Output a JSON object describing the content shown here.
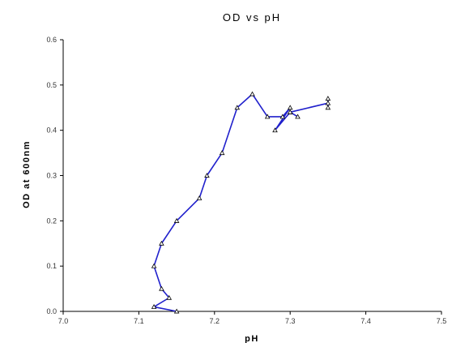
{
  "chart_data": {
    "type": "line",
    "title": "OD vs pH",
    "xlabel": "pH",
    "ylabel": "OD at 600nm",
    "xlim": [
      7.0,
      7.5
    ],
    "ylim": [
      0.0,
      0.6
    ],
    "x_ticks": [
      "7.0",
      "7.1",
      "7.2",
      "7.3",
      "7.4",
      "7.5"
    ],
    "y_ticks": [
      "0.0",
      "0.1",
      "0.2",
      "0.3",
      "0.4",
      "0.5",
      "0.6"
    ],
    "grid": false,
    "line_color": "#2020cc",
    "series": [
      {
        "points": [
          {
            "x": 7.15,
            "y": 0.0
          },
          {
            "x": 7.12,
            "y": 0.01
          },
          {
            "x": 7.14,
            "y": 0.03
          },
          {
            "x": 7.13,
            "y": 0.05
          },
          {
            "x": 7.12,
            "y": 0.1
          },
          {
            "x": 7.13,
            "y": 0.15
          },
          {
            "x": 7.15,
            "y": 0.2
          },
          {
            "x": 7.18,
            "y": 0.25
          },
          {
            "x": 7.19,
            "y": 0.3
          },
          {
            "x": 7.21,
            "y": 0.35
          },
          {
            "x": 7.23,
            "y": 0.45
          },
          {
            "x": 7.25,
            "y": 0.48
          },
          {
            "x": 7.27,
            "y": 0.43
          },
          {
            "x": 7.29,
            "y": 0.43
          },
          {
            "x": 7.3,
            "y": 0.45
          },
          {
            "x": 7.28,
            "y": 0.4
          },
          {
            "x": 7.3,
            "y": 0.44
          },
          {
            "x": 7.31,
            "y": 0.43
          },
          {
            "x": 7.3,
            "y": 0.44
          },
          {
            "x": 7.35,
            "y": 0.46
          },
          {
            "x": 7.35,
            "y": 0.47
          },
          {
            "x": 7.35,
            "y": 0.45
          }
        ]
      }
    ]
  }
}
